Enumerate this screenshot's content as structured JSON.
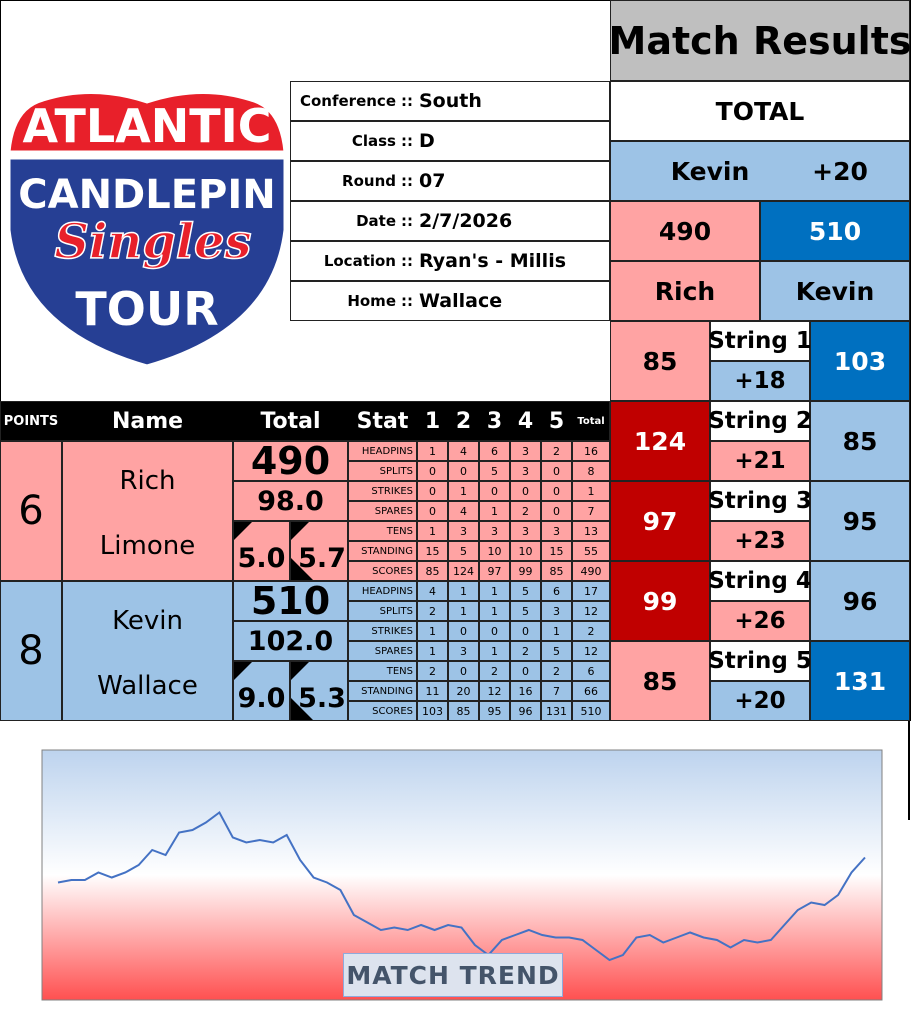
{
  "logo": {
    "line1": "ATLANTIC",
    "line2": "CANDLEPIN",
    "line3": "Singles",
    "line4": "TOUR"
  },
  "info": {
    "separator": "::",
    "rows": [
      {
        "label": "Conference",
        "value": "South"
      },
      {
        "label": "Class",
        "value": "D"
      },
      {
        "label": "Round",
        "value": "07"
      },
      {
        "label": "Date",
        "value": "2/7/2026"
      },
      {
        "label": "Location",
        "value": "Ryan's - Millis"
      },
      {
        "label": "Home",
        "value": "Wallace"
      }
    ]
  },
  "results": {
    "title": "Match Results",
    "total_label": "TOTAL",
    "leader": "Kevin",
    "margin": "+20",
    "scores": [
      490,
      510
    ],
    "players": [
      "Rich",
      "Kevin"
    ],
    "strings": [
      {
        "label": "String 1",
        "home": 85,
        "away": 103,
        "margin": "+18"
      },
      {
        "label": "String 2",
        "home": 124,
        "away": 85,
        "margin": "+21"
      },
      {
        "label": "String 3",
        "home": 97,
        "away": 95,
        "margin": "+23"
      },
      {
        "label": "String 4",
        "home": 99,
        "away": 96,
        "margin": "+26"
      },
      {
        "label": "String 5",
        "home": 85,
        "away": 131,
        "margin": "+20"
      }
    ]
  },
  "table": {
    "header": {
      "points": "POINTS",
      "name": "Name",
      "total": "Total",
      "stat": "Stat",
      "games": [
        "1",
        "2",
        "3",
        "4",
        "5"
      ],
      "stat_total": "Total"
    },
    "players": [
      {
        "points": 6,
        "first": "Rich",
        "last": "Limone",
        "total": 490,
        "average": "98.0",
        "stat_a": "5.0",
        "stat_b": "5.7",
        "stats": [
          {
            "name": "HEADPINS",
            "values": [
              1,
              4,
              6,
              3,
              2
            ],
            "total": 16
          },
          {
            "name": "SPLITS",
            "values": [
              0,
              0,
              5,
              3,
              0
            ],
            "total": 8
          },
          {
            "name": "STRIKES",
            "values": [
              0,
              1,
              0,
              0,
              0
            ],
            "total": 1
          },
          {
            "name": "SPARES",
            "values": [
              0,
              4,
              1,
              2,
              0
            ],
            "total": 7
          },
          {
            "name": "TENS",
            "values": [
              1,
              3,
              3,
              3,
              3
            ],
            "total": 13
          },
          {
            "name": "STANDING",
            "values": [
              15,
              5,
              10,
              10,
              15
            ],
            "total": 55
          },
          {
            "name": "SCORES",
            "values": [
              85,
              124,
              97,
              99,
              85
            ],
            "total": 490
          }
        ]
      },
      {
        "points": 8,
        "first": "Kevin",
        "last": "Wallace",
        "total": 510,
        "average": "102.0",
        "stat_a": "9.0",
        "stat_b": "5.3",
        "stats": [
          {
            "name": "HEADPINS",
            "values": [
              4,
              1,
              1,
              5,
              6
            ],
            "total": 17
          },
          {
            "name": "SPLITS",
            "values": [
              2,
              1,
              1,
              5,
              3
            ],
            "total": 12
          },
          {
            "name": "STRIKES",
            "values": [
              1,
              0,
              0,
              0,
              1
            ],
            "total": 2
          },
          {
            "name": "SPARES",
            "values": [
              1,
              3,
              1,
              2,
              5
            ],
            "total": 12
          },
          {
            "name": "TENS",
            "values": [
              2,
              0,
              2,
              0,
              2
            ],
            "total": 6
          },
          {
            "name": "STANDING",
            "values": [
              11,
              20,
              12,
              16,
              7
            ],
            "total": 66
          },
          {
            "name": "SCORES",
            "values": [
              103,
              85,
              95,
              96,
              131
            ],
            "total": 510
          }
        ]
      }
    ]
  },
  "trend": {
    "type": "line",
    "title": "MATCH TREND",
    "color": "#4472c4",
    "ylim": [
      0,
      100
    ],
    "values": [
      47,
      48,
      48,
      51,
      49,
      51,
      54,
      60,
      58,
      67,
      68,
      71,
      75,
      65,
      63,
      64,
      63,
      66,
      56,
      49,
      47,
      44,
      34,
      31,
      28,
      29,
      28,
      30,
      28,
      30,
      29,
      22,
      18,
      24,
      26,
      28,
      26,
      25,
      25,
      24,
      20,
      16,
      18,
      25,
      26,
      23,
      25,
      27,
      25,
      24,
      21,
      24,
      23,
      24,
      30,
      36,
      39,
      38,
      42,
      51,
      57
    ]
  }
}
